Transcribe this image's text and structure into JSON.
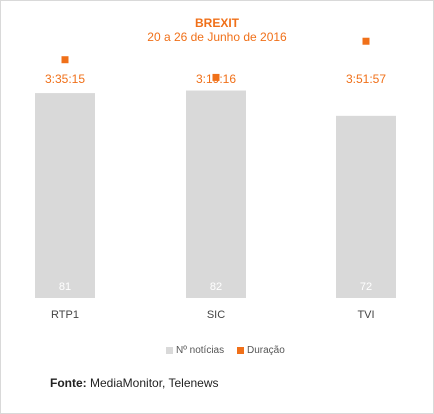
{
  "chart_data": {
    "type": "bar",
    "title": "BREXIT",
    "subtitle": "20 a 26 de Junho de 2016",
    "categories": [
      "RTP1",
      "SIC",
      "TVI"
    ],
    "series": [
      {
        "name": "Nº notícias",
        "kind": "bar",
        "values": [
          81,
          82,
          72
        ],
        "value_labels": [
          "81",
          "82",
          "72"
        ]
      },
      {
        "name": "Duração",
        "kind": "marker",
        "values_seconds": [
          12915,
          11956,
          13917
        ],
        "value_labels": [
          "3:35:15",
          "3:19:16",
          "3:51:57"
        ]
      }
    ],
    "legend_position": "bottom-center",
    "grid": false,
    "colors": {
      "bars": "#d9d9d9",
      "markers": "#f07019",
      "accent_text": "#f07019",
      "bar_label": "#ffffff"
    }
  },
  "source": {
    "label": "Fonte:",
    "text": "MediaMonitor, Telenews"
  }
}
